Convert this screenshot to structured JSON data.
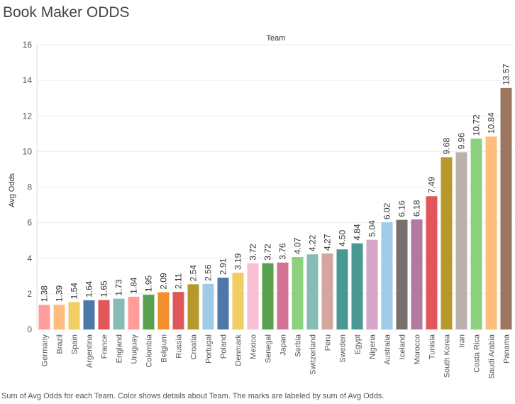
{
  "page": {
    "title": "Book Maker ODDS",
    "footer": "Sum of Avg Odds for each Team.  Color shows details about Team.  The marks are labeled by sum of Avg Odds."
  },
  "chart_data": {
    "type": "bar",
    "title": "Book Maker ODDS",
    "column_header": "Team",
    "xlabel": "",
    "ylabel": "Avg Odds",
    "ylim": [
      0,
      16
    ],
    "yticks": [
      0,
      2,
      4,
      6,
      8,
      10,
      12,
      14,
      16
    ],
    "value_labels": [
      "1.38",
      "1.39",
      "1.54",
      "1.64",
      "1.65",
      "1.73",
      "1.84",
      "1.95",
      "2.09",
      "2.11",
      "2.54",
      "2.56",
      "2.91",
      "3.19",
      "3.72",
      "3.72",
      "3.76",
      "4.07",
      "4.22",
      "4.27",
      "4.50",
      "4.84",
      "5.04",
      "6.02",
      "6.16",
      "6.18",
      "7.49",
      "9.68",
      "9.96",
      "10.72",
      "10.84",
      "13.57"
    ],
    "categories": [
      "Germany",
      "Brazil",
      "Spain",
      "Argentina",
      "France",
      "England",
      "Uruguay",
      "Colombia",
      "Belgium",
      "Russia",
      "Croatia",
      "Portugal",
      "Poland",
      "Denmark",
      "Mexico",
      "Senegal",
      "Japan",
      "Serbia",
      "Switzerland",
      "Peru",
      "Sweden",
      "Egypt",
      "Nigeria",
      "Australia",
      "Iceland",
      "Morocco",
      "Tunisia",
      "South Korea",
      "Iran",
      "Costa Rica",
      "Saudi Arabia",
      "Panama"
    ],
    "values": [
      1.38,
      1.39,
      1.54,
      1.64,
      1.65,
      1.73,
      1.84,
      1.95,
      2.09,
      2.11,
      2.54,
      2.56,
      2.91,
      3.19,
      3.72,
      3.72,
      3.76,
      4.07,
      4.22,
      4.27,
      4.5,
      4.84,
      5.04,
      6.02,
      6.16,
      6.18,
      7.49,
      9.68,
      9.96,
      10.72,
      10.84,
      13.57
    ],
    "colors": [
      "#ff9d9a",
      "#ffbe7d",
      "#f1ce63",
      "#4e79a7",
      "#e15759",
      "#86bcb6",
      "#ff9d9a",
      "#59a14f",
      "#f28e2b",
      "#e15759",
      "#b6992d",
      "#a0cbe8",
      "#4e79a7",
      "#f1ce63",
      "#fabfd2",
      "#59a14f",
      "#d37295",
      "#8cd17d",
      "#86bcb6",
      "#d4a6a0",
      "#499894",
      "#499894",
      "#d4a6c8",
      "#a0cbe8",
      "#79706e",
      "#b07aa1",
      "#e15759",
      "#b6992d",
      "#bab0ac",
      "#8cd17d",
      "#ffbe7d",
      "#9d7660"
    ],
    "grid": true,
    "legend": "none"
  }
}
